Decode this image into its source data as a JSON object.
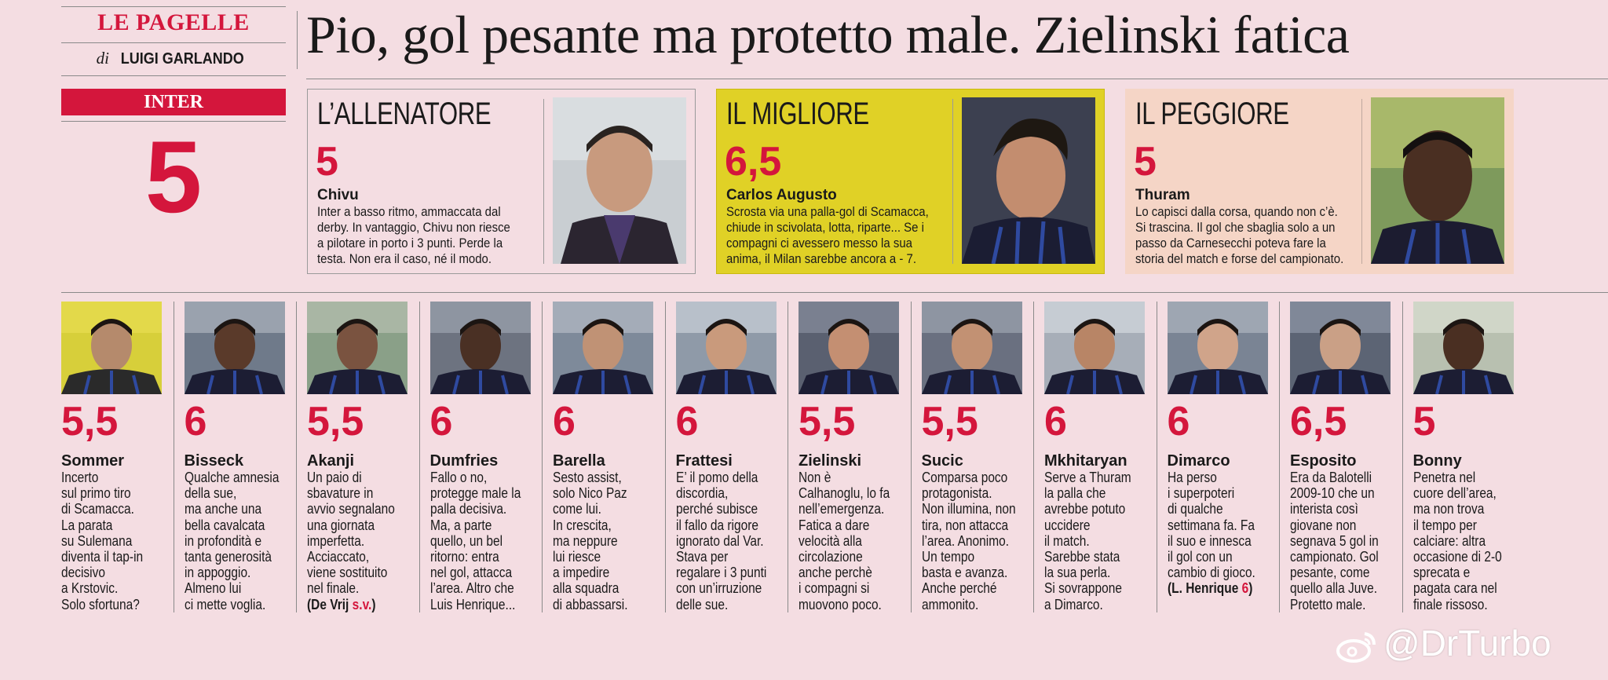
{
  "header": {
    "section": "LE PAGELLE",
    "byline_prefix": "di",
    "byline_author": "LUIGI GARLANDO",
    "headline": "Pio, gol pesante ma protetto male. Zielinski fatica"
  },
  "team": {
    "name": "INTER",
    "score": "5"
  },
  "features": {
    "coach": {
      "label": "L’ALLENATORE",
      "score": "5",
      "name": "Chivu",
      "lines": [
        "Inter a basso ritmo, ammaccata dal",
        "derby. In vantaggio, Chivu non riesce",
        "a pilotare in porto i 3 punti. Perde la",
        "testa. Non era il caso, né il modo."
      ]
    },
    "best": {
      "label": "IL MIGLIORE",
      "score": "6,5",
      "name": "Carlos Augusto",
      "lines": [
        "Scrosta via una palla-gol di Scamacca,",
        "chiude in scivolata, lotta, riparte... Se i",
        "compagni ci avessero messo la sua",
        "anima, il Milan sarebbe ancora a - 7."
      ]
    },
    "worst": {
      "label": "IL PEGGIORE",
      "score": "5",
      "name": "Thuram",
      "lines": [
        "Lo capisci dalla corsa, quando non c’è.",
        "Si trascina. Il gol che sbaglia solo a un",
        "passo da Carnesecchi poteva fare la",
        "storia del match e forse del campionato."
      ]
    }
  },
  "players": [
    {
      "score": "5,5",
      "name": "Sommer",
      "text": "Incerto\nsul primo tiro\ndi Scamacca.\nLa parata\nsu Sulemana\ndiventa il tap-in\ndecisivo\na Krstovic.\nSolo sfortuna?"
    },
    {
      "score": "6",
      "name": "Bisseck",
      "text": "Qualche amnesia\ndella sue,\nma anche una\nbella cavalcata\nin profondità e\ntanta generosità\nin appoggio.\nAlmeno lui\nci mette voglia."
    },
    {
      "score": "5,5",
      "name": "Akanji",
      "text": "Un paio di\nsbavature in\navvio segnalano\nuna giornata\nimperfetta.\nAcciaccato,\nviene sostituito\nnel finale.",
      "sub_open": "(",
      "sub_name": "De Vrij",
      "sub_score": "s.v.",
      "sub_close": ")"
    },
    {
      "score": "6",
      "name": "Dumfries",
      "text": "Fallo o no,\nprotegge male la\npalla decisiva.\nMa, a parte\nquello, un bel\nritorno: entra\nnel gol, attacca\nl’area. Altro che\nLuis Henrique..."
    },
    {
      "score": "6",
      "name": "Barella",
      "text": "Sesto assist,\nsolo Nico Paz\ncome lui.\nIn crescita,\nma neppure\nlui riesce\na impedire\nalla squadra\ndi abbassarsi."
    },
    {
      "score": "6",
      "name": "Frattesi",
      "text": "E’ il pomo della\ndiscordia,\nperché subisce\nil fallo da rigore\nignorato dal Var.\nStava per\nregalare i 3 punti\ncon un’irruzione\ndelle sue."
    },
    {
      "score": "5,5",
      "name": "Zielinski",
      "text": "Non è\nCalhanoglu, lo fa\nnell’emergenza.\nFatica a dare\nvelocità alla\ncircolazione\nanche perchè\ni compagni si\nmuovono poco."
    },
    {
      "score": "5,5",
      "name": "Sucic",
      "text": "Comparsa poco\nprotagonista.\nNon illumina, non\ntira, non attacca\nl’area. Anonimo.\nUn tempo\nbasta e avanza.\nAnche perché\nammonito."
    },
    {
      "score": "6",
      "name": "Mkhitaryan",
      "text": "Serve a Thuram\nla palla che\navrebbe potuto\nuccidere\nil match.\nSarebbe stata\nla sua perla.\nSi sovrappone\na Dimarco."
    },
    {
      "score": "6",
      "name": "Dimarco",
      "text": "Ha perso\ni superpoteri\ndi qualche\nsettimana fa. Fa\nil suo e innesca\nil gol con un\ncambio di gioco.",
      "sub_open": "(",
      "sub_name": "L. Henrique",
      "sub_score": "6",
      "sub_close": ")"
    },
    {
      "score": "6,5",
      "name": "Esposito",
      "text": "Era da Balotelli\n2009-10 che un\ninterista così\ngiovane non\nsegnava 5 gol in\ncampionato. Gol\npesante, come\nquello alla Juve.\nProtetto male."
    },
    {
      "score": "5",
      "name": "Bonny",
      "text": "Penetra nel\ncuore dell’area,\nma non trova\nil tempo per\ncalciare: altra\noccasione di 2-0\nsprecata e\npagata cara nel\nfinale rissoso."
    }
  ],
  "watermark": "@DrTurbo",
  "colors": {
    "accent_red": "#d4163c",
    "best_yellow": "#e0d126",
    "worst_peach": "#f5d5c6",
    "page_pink": "#f4dde2"
  }
}
